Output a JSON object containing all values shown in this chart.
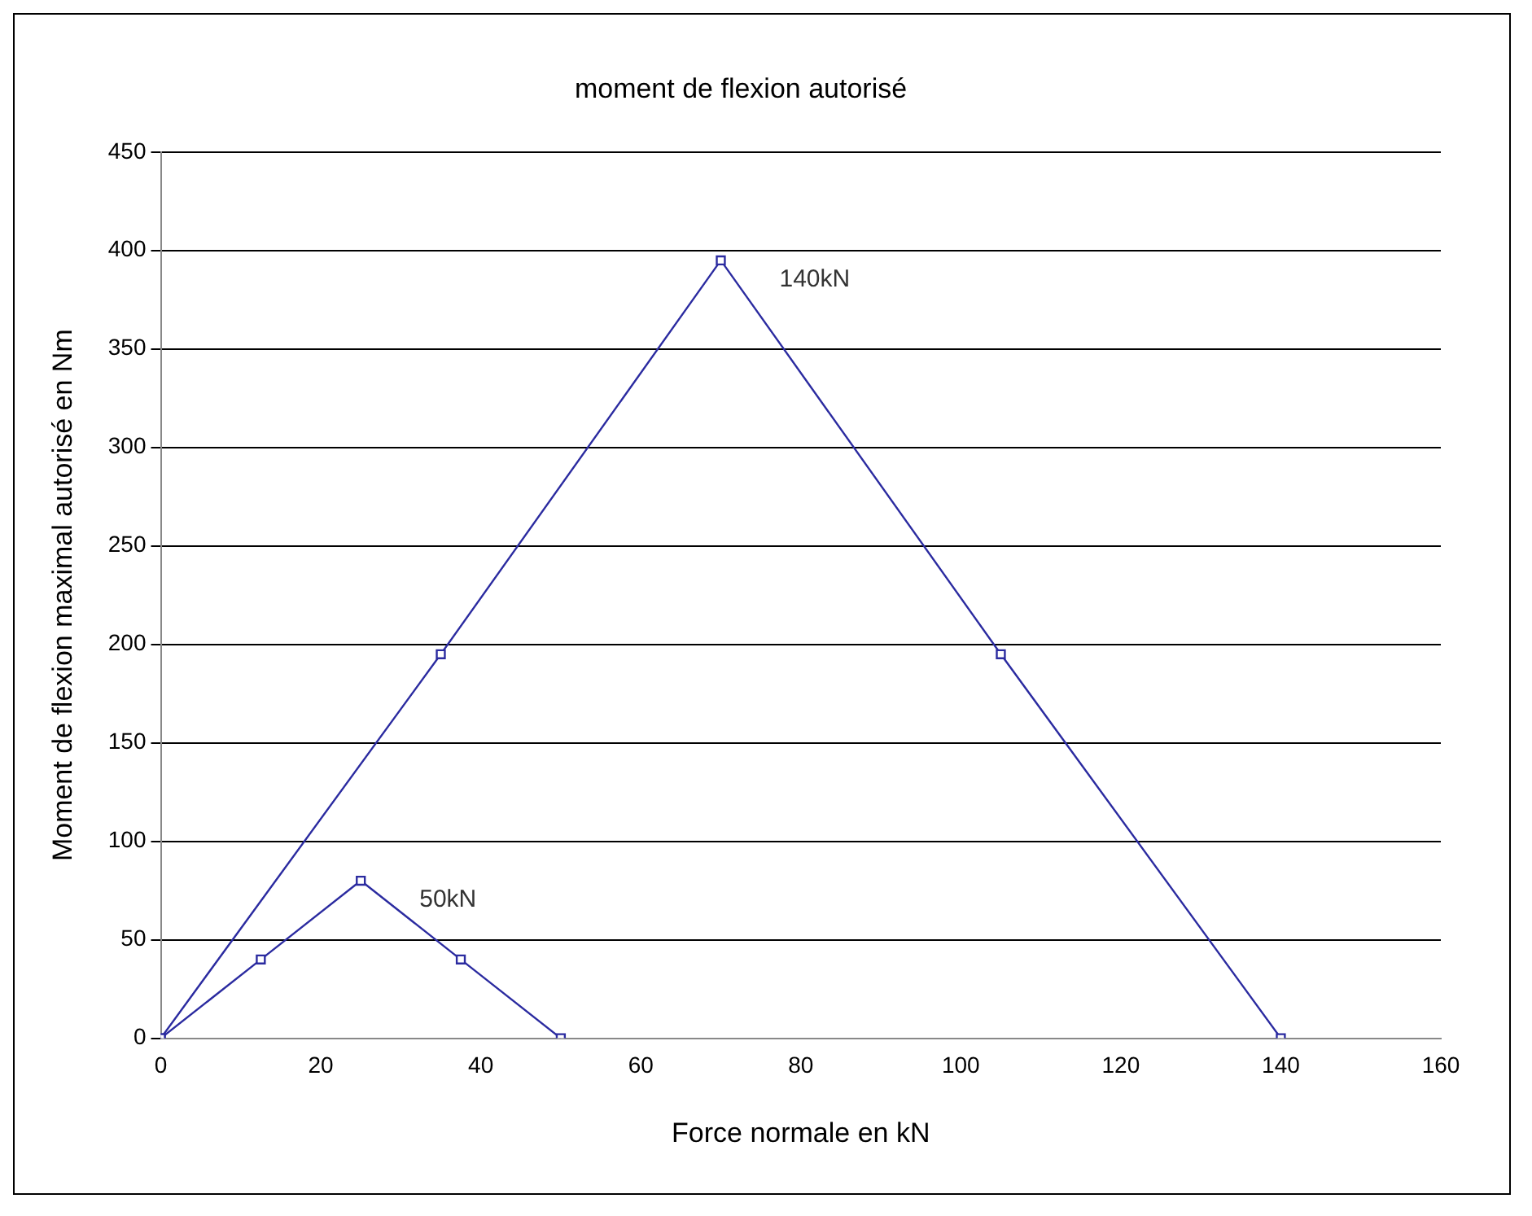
{
  "chart_data": {
    "type": "line",
    "title": "moment de flexion autorisé",
    "xlabel": "Force normale en kN",
    "ylabel": "Moment de flexion maximal autorisé en Nm",
    "xlim": [
      0,
      160
    ],
    "xticks": [
      0,
      20,
      40,
      60,
      80,
      100,
      120,
      140,
      160
    ],
    "ylim": [
      0,
      450
    ],
    "yticks": [
      0,
      50,
      100,
      150,
      200,
      250,
      300,
      350,
      400,
      450
    ],
    "grid": "y",
    "marker": "square",
    "legend": false,
    "series": [
      {
        "name": "140kN",
        "color": "#2b2ba0",
        "x": [
          0,
          35,
          70,
          105,
          140
        ],
        "values": [
          0,
          195,
          395,
          195,
          0
        ]
      },
      {
        "name": "50kN",
        "color": "#2b2ba0",
        "x": [
          0,
          12.5,
          25,
          37.5,
          50
        ],
        "values": [
          0,
          40,
          80,
          40,
          0
        ]
      }
    ]
  }
}
